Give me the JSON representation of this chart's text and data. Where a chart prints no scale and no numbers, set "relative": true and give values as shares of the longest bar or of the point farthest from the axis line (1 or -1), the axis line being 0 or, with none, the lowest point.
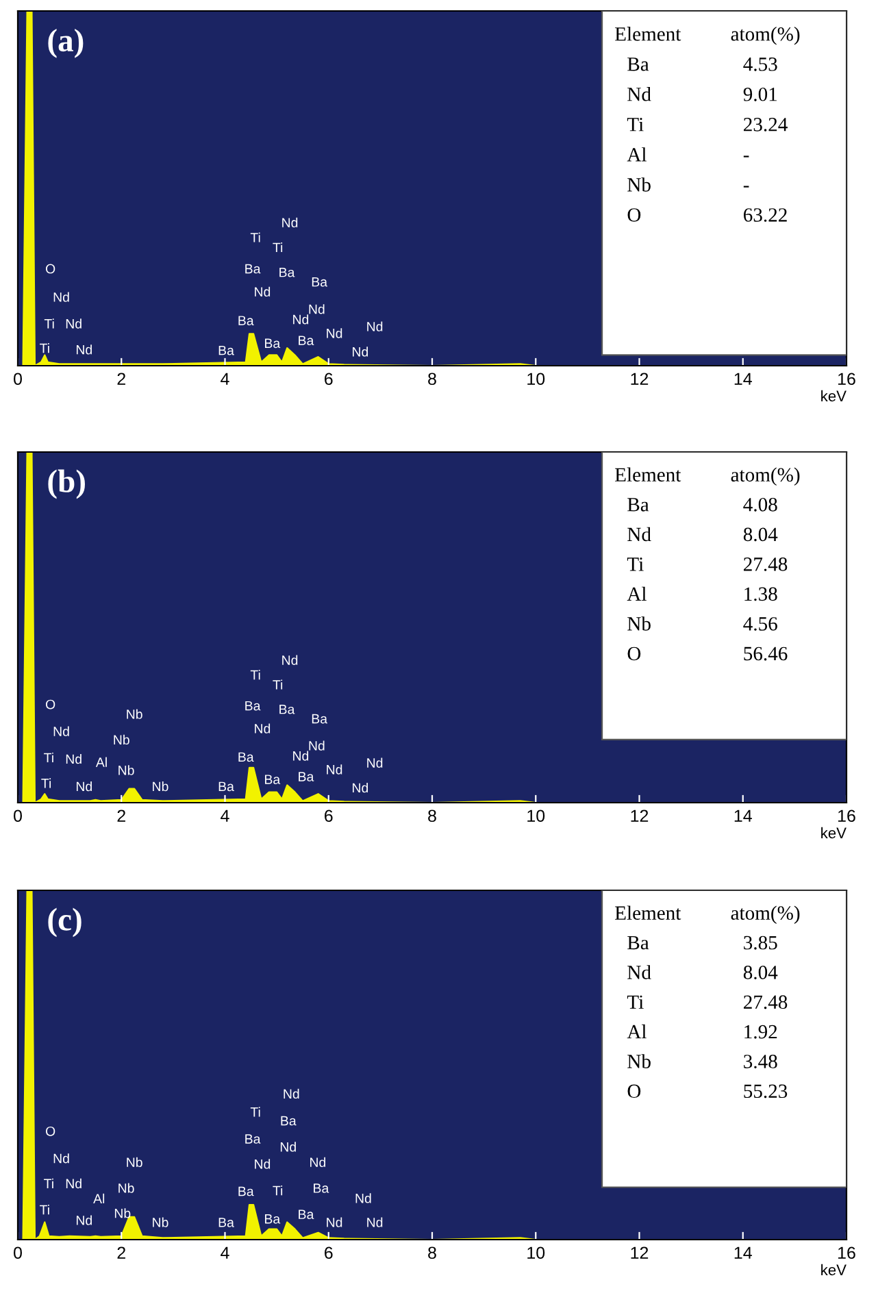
{
  "chart_data": [
    {
      "type": "area",
      "title": "(a)",
      "xlabel": "keV",
      "relative": true,
      "color": "#f2f200",
      "xlim": [
        0,
        16
      ],
      "xticks": [
        0,
        2,
        4,
        6,
        8,
        10,
        12,
        14,
        16
      ],
      "x": [
        0,
        0.1,
        0.18,
        0.27,
        0.33,
        0.45,
        0.52,
        0.58,
        0.8,
        1.0,
        2.8,
        3.8,
        4.4,
        4.47,
        4.55,
        4.7,
        4.85,
        5.0,
        5.1,
        5.2,
        5.35,
        5.5,
        5.8,
        6.0,
        6.3,
        8,
        9.7,
        10,
        16
      ],
      "values": [
        0,
        0,
        1,
        1,
        0,
        0.01,
        0.03,
        0.01,
        0.005,
        0.005,
        0.005,
        0.008,
        0.01,
        0.09,
        0.09,
        0.01,
        0.03,
        0.03,
        0.01,
        0.05,
        0.03,
        0.005,
        0.025,
        0.005,
        0.003,
        0,
        0.005,
        0,
        0
      ],
      "annotations": [
        "O",
        "Nd",
        "Ti",
        "Nd",
        "Ti",
        "Nd",
        "Ba",
        "Ba",
        "Nd",
        "Ba",
        "Ti",
        "Nd",
        "Ti",
        "Ba",
        "Ba",
        "Nd",
        "Nd",
        "Ba",
        "Ba",
        "Nd",
        "Nd",
        "Nd",
        "Element",
        "atom(%)",
        "Ba",
        "4.53",
        "Nd",
        "9.01",
        "Ti",
        "23.24",
        "Al",
        "-",
        "Nb",
        "-",
        "O",
        "63.22"
      ]
    },
    {
      "type": "area",
      "title": "(b)",
      "xlabel": "keV",
      "relative": true,
      "color": "#f2f200",
      "xlim": [
        0,
        16
      ],
      "xticks": [
        0,
        2,
        4,
        6,
        8,
        10,
        12,
        14,
        16
      ],
      "x": [
        0,
        0.1,
        0.18,
        0.27,
        0.33,
        0.45,
        0.52,
        0.58,
        0.8,
        1.0,
        1.4,
        1.5,
        1.6,
        2.0,
        2.15,
        2.25,
        2.4,
        2.8,
        3.8,
        4.4,
        4.47,
        4.55,
        4.7,
        4.85,
        5.0,
        5.1,
        5.2,
        5.35,
        5.5,
        5.8,
        6.0,
        6.3,
        8,
        9.7,
        10,
        16
      ],
      "values": [
        0,
        0,
        1,
        1,
        0,
        0.01,
        0.025,
        0.01,
        0.005,
        0.005,
        0.005,
        0.008,
        0.005,
        0.008,
        0.04,
        0.04,
        0.008,
        0.005,
        0.008,
        0.01,
        0.1,
        0.1,
        0.01,
        0.03,
        0.03,
        0.01,
        0.05,
        0.03,
        0.005,
        0.025,
        0.005,
        0.003,
        0,
        0.005,
        0,
        0
      ],
      "annotations": [
        "O",
        "Nd",
        "Ti",
        "Nd",
        "Al",
        "Nb",
        "Nb",
        "Nb",
        "Nd",
        "Ti",
        "Nb",
        "Ba",
        "Ba",
        "Nd",
        "Ba",
        "Ti",
        "Nd",
        "Ti",
        "Ba",
        "Ba",
        "Nd",
        "Nd",
        "Ba",
        "Ba",
        "Nd",
        "Nd",
        "Nd",
        "Element",
        "atom(%)",
        "Ba",
        "4.08",
        "Nd",
        "8.04",
        "Ti",
        "27.48",
        "Al",
        "1.38",
        "Nb",
        "4.56",
        "O",
        "56.46"
      ]
    },
    {
      "type": "area",
      "title": "(c)",
      "xlabel": "keV",
      "relative": true,
      "color": "#f2f200",
      "xlim": [
        0,
        16
      ],
      "xticks": [
        0,
        2,
        4,
        6,
        8,
        10,
        12,
        14,
        16
      ],
      "x": [
        0,
        0.1,
        0.18,
        0.27,
        0.33,
        0.42,
        0.52,
        0.6,
        0.8,
        1.0,
        1.4,
        1.5,
        1.6,
        2.0,
        2.15,
        2.25,
        2.4,
        2.8,
        3.8,
        4.4,
        4.47,
        4.55,
        4.7,
        4.85,
        5.0,
        5.1,
        5.2,
        5.35,
        5.5,
        5.8,
        6.0,
        6.3,
        8,
        9.7,
        10,
        16
      ],
      "values": [
        0,
        0,
        1,
        1,
        0,
        0.01,
        0.05,
        0.01,
        0.008,
        0.01,
        0.008,
        0.01,
        0.008,
        0.01,
        0.065,
        0.065,
        0.01,
        0.005,
        0.008,
        0.01,
        0.1,
        0.1,
        0.01,
        0.03,
        0.03,
        0.01,
        0.05,
        0.03,
        0.005,
        0.02,
        0.005,
        0.003,
        0,
        0.005,
        0,
        0
      ],
      "annotations": [
        "O",
        "Nd",
        "Ti",
        "Nd",
        "Ti",
        "Nd",
        "Al",
        "Nb",
        "Nb",
        "Nb",
        "Nb",
        "Ba",
        "Ba",
        "Nd",
        "Ba",
        "Ti",
        "Nd",
        "Ba",
        "Nd",
        "Ti",
        "Ba",
        "Ba",
        "Nd",
        "Ba",
        "Nd",
        "Nd",
        "Nd",
        "Element",
        "atom(%)",
        "Ba",
        "3.85",
        "Nd",
        "8.04",
        "Ti",
        "27.48",
        "Al",
        "1.92",
        "Nb",
        "3.48",
        "O",
        "55.23"
      ]
    }
  ]
}
